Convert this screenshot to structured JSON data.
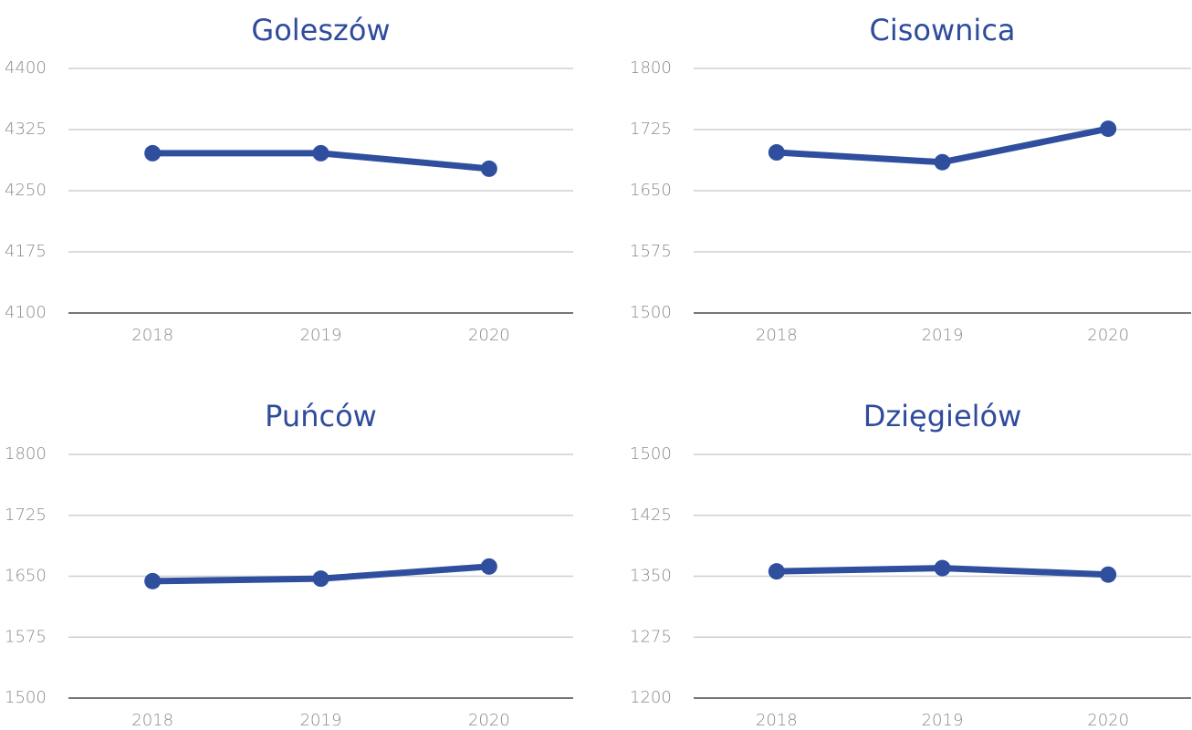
{
  "chart_data": [
    {
      "type": "line",
      "title": "Goleszów",
      "categories": [
        "2018",
        "2019",
        "2020"
      ],
      "values": [
        4296,
        4296,
        4277
      ],
      "color": "#2f4f9e",
      "ylim": [
        4100,
        4400
      ],
      "yticks": [
        4100,
        4175,
        4250,
        4325,
        4400
      ],
      "grid": true
    },
    {
      "type": "line",
      "title": "Cisownica",
      "categories": [
        "2018",
        "2019",
        "2020"
      ],
      "values": [
        1697,
        1685,
        1726
      ],
      "color": "#2f4f9e",
      "ylim": [
        1500,
        1800
      ],
      "yticks": [
        1500,
        1575,
        1650,
        1725,
        1800
      ],
      "grid": true
    },
    {
      "type": "line",
      "title": "Puńców",
      "categories": [
        "2018",
        "2019",
        "2020"
      ],
      "values": [
        1644,
        1647,
        1662
      ],
      "color": "#2f4f9e",
      "ylim": [
        1500,
        1800
      ],
      "yticks": [
        1500,
        1575,
        1650,
        1725,
        1800
      ],
      "grid": true
    },
    {
      "type": "line",
      "title": "Dzięgielów",
      "categories": [
        "2018",
        "2019",
        "2020"
      ],
      "values": [
        1356,
        1360,
        1352
      ],
      "color": "#2f4f9e",
      "ylim": [
        1200,
        1500
      ],
      "yticks": [
        1200,
        1275,
        1350,
        1425,
        1500
      ],
      "grid": true
    }
  ]
}
